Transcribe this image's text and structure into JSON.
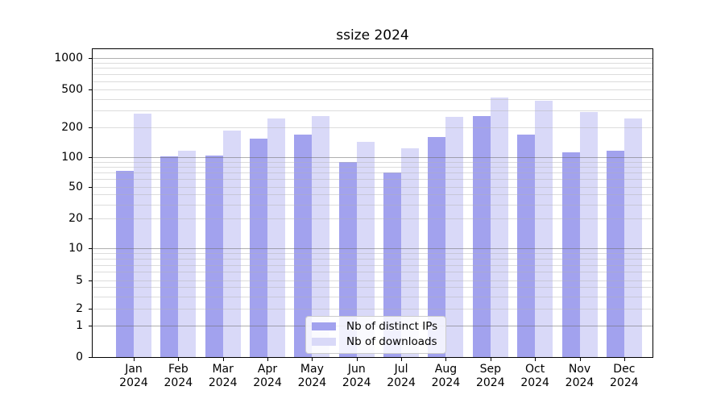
{
  "title": "ssize 2024",
  "colors": {
    "ips_bar": "#a2a2ee",
    "downloads_bar": "#d9d9f8",
    "grid_major": "rgba(110,110,110,0.55)",
    "grid_minor": "rgba(178,178,178,0.45)",
    "axis": "#000000",
    "background": "#ffffff",
    "legend_border": "#cccccc"
  },
  "legend": {
    "items": [
      {
        "label": "Nb of distinct IPs",
        "series": "ips"
      },
      {
        "label": "Nb of downloads",
        "series": "downloads"
      }
    ]
  },
  "y_axis": {
    "tick_values": [
      1000,
      500,
      200,
      100,
      50,
      20,
      10,
      5,
      2,
      1,
      0
    ]
  },
  "x_axis": {
    "months": [
      "Jan",
      "Feb",
      "Mar",
      "Apr",
      "May",
      "Jun",
      "Jul",
      "Aug",
      "Sep",
      "Oct",
      "Nov",
      "Dec"
    ],
    "year": "2024"
  },
  "chart_data": {
    "type": "bar",
    "title": "ssize 2024",
    "categories": [
      "Jan 2024",
      "Feb 2024",
      "Mar 2024",
      "Apr 2024",
      "May 2024",
      "Jun 2024",
      "Jul 2024",
      "Aug 2024",
      "Sep 2024",
      "Oct 2024",
      "Nov 2024",
      "Dec 2024"
    ],
    "series": [
      {
        "name": "Nb of distinct IPs",
        "color": "#a2a2ee",
        "values": [
          73,
          101,
          103,
          155,
          170,
          90,
          70,
          160,
          266,
          170,
          113,
          116
        ]
      },
      {
        "name": "Nb of downloads",
        "color": "#d9d9f8",
        "values": [
          280,
          117,
          185,
          250,
          265,
          143,
          123,
          260,
          410,
          380,
          290,
          250
        ]
      }
    ],
    "yscale": "symlog (log-like above 1, linear 0-1)",
    "yticks": [
      0,
      1,
      2,
      5,
      10,
      20,
      50,
      100,
      200,
      500,
      1000
    ],
    "ylim": [
      0,
      1200
    ],
    "xlabel": "",
    "ylabel": "",
    "grid": "horizontal, major at powers of 10 + faint log minors",
    "legend_position": "lower center"
  }
}
